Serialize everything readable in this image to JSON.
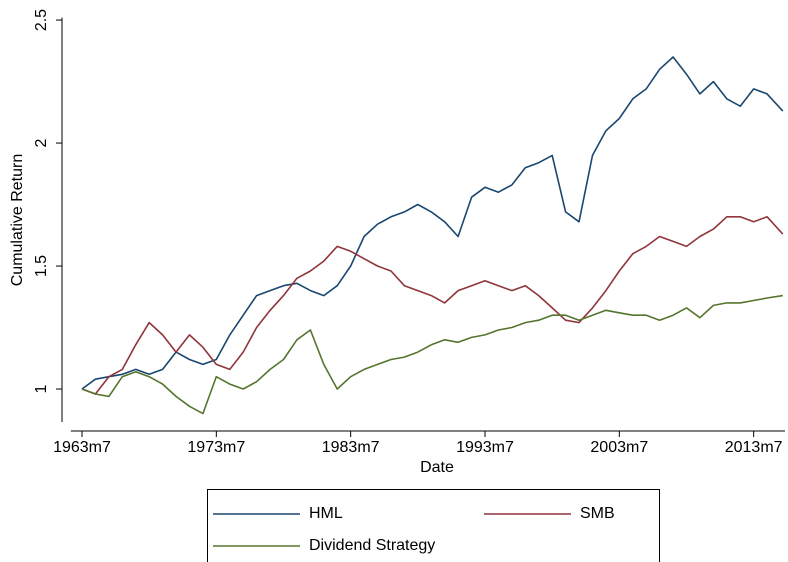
{
  "chart_data": {
    "type": "line",
    "x_label": "Date",
    "y_label": "Cumulative Return",
    "x": [
      42,
      54,
      66,
      78,
      90,
      102,
      114,
      126,
      138,
      150,
      162,
      174,
      186,
      198,
      210,
      222,
      234,
      246,
      258,
      270,
      282,
      294,
      306,
      318,
      330,
      342,
      354,
      366,
      378,
      390,
      402,
      414,
      426,
      438,
      450,
      462,
      474,
      486,
      498,
      510,
      522,
      534,
      546,
      558,
      570,
      582,
      594,
      606,
      618,
      630,
      642,
      654,
      668
    ],
    "series": [
      {
        "name": "HML",
        "color": "#1a476f",
        "values": [
          1.0,
          1.04,
          1.05,
          1.06,
          1.08,
          1.06,
          1.08,
          1.15,
          1.12,
          1.1,
          1.12,
          1.22,
          1.3,
          1.38,
          1.4,
          1.42,
          1.43,
          1.4,
          1.38,
          1.42,
          1.5,
          1.62,
          1.67,
          1.7,
          1.72,
          1.75,
          1.72,
          1.68,
          1.62,
          1.78,
          1.82,
          1.8,
          1.83,
          1.9,
          1.92,
          1.95,
          1.72,
          1.68,
          1.95,
          2.05,
          2.1,
          2.18,
          2.22,
          2.3,
          2.35,
          2.28,
          2.2,
          2.25,
          2.18,
          2.15,
          2.22,
          2.2,
          2.13
        ]
      },
      {
        "name": "SMB",
        "color": "#90353b",
        "values": [
          1.0,
          0.98,
          1.05,
          1.08,
          1.18,
          1.27,
          1.22,
          1.15,
          1.22,
          1.17,
          1.1,
          1.08,
          1.15,
          1.25,
          1.32,
          1.38,
          1.45,
          1.48,
          1.52,
          1.58,
          1.56,
          1.53,
          1.5,
          1.48,
          1.42,
          1.4,
          1.38,
          1.35,
          1.4,
          1.42,
          1.44,
          1.42,
          1.4,
          1.42,
          1.38,
          1.33,
          1.28,
          1.27,
          1.33,
          1.4,
          1.48,
          1.55,
          1.58,
          1.62,
          1.6,
          1.58,
          1.62,
          1.65,
          1.7,
          1.7,
          1.68,
          1.7,
          1.63
        ]
      },
      {
        "name": "Dividend Strategy",
        "color": "#55752f",
        "values": [
          1.0,
          0.98,
          0.97,
          1.05,
          1.07,
          1.05,
          1.02,
          0.97,
          0.93,
          0.9,
          1.05,
          1.02,
          1.0,
          1.03,
          1.08,
          1.12,
          1.2,
          1.24,
          1.1,
          1.0,
          1.05,
          1.08,
          1.1,
          1.12,
          1.13,
          1.15,
          1.18,
          1.2,
          1.19,
          1.21,
          1.22,
          1.24,
          1.25,
          1.27,
          1.28,
          1.3,
          1.3,
          1.28,
          1.3,
          1.32,
          1.31,
          1.3,
          1.3,
          1.28,
          1.3,
          1.33,
          1.29,
          1.34,
          1.35,
          1.35,
          1.36,
          1.37,
          1.38
        ]
      }
    ],
    "xlim": [
      32,
      670
    ],
    "xticks": [
      {
        "value": 42,
        "label": "1963m7"
      },
      {
        "value": 162,
        "label": "1973m7"
      },
      {
        "value": 282,
        "label": "1983m7"
      },
      {
        "value": 402,
        "label": "1993m7"
      },
      {
        "value": 522,
        "label": "2003m7"
      },
      {
        "value": 642,
        "label": "2013m7"
      }
    ],
    "ylim": [
      0.866,
      2.51
    ],
    "yticks": [
      1,
      1.5,
      2,
      2.5
    ],
    "grid": false,
    "legend": "bottom"
  }
}
